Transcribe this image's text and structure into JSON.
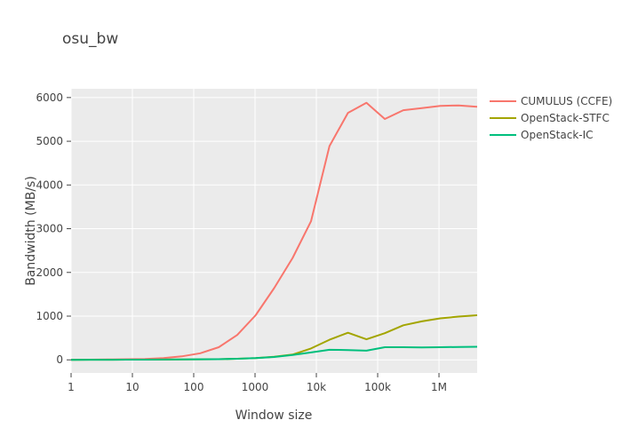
{
  "chart_data": {
    "type": "line",
    "title": "osu_bw",
    "xlabel": "Window size",
    "ylabel": "Bandwidth (MB/s)",
    "xscale": "log",
    "xlim": [
      1,
      4194304
    ],
    "ylim": [
      -300,
      6200
    ],
    "x_ticks": [
      1,
      10,
      100,
      1000,
      10000,
      100000,
      1000000
    ],
    "x_tick_labels": [
      "1",
      "10",
      "100",
      "1000",
      "10k",
      "100k",
      "1M"
    ],
    "y_ticks": [
      0,
      1000,
      2000,
      3000,
      4000,
      5000,
      6000
    ],
    "y_tick_labels": [
      "0",
      "1000",
      "2000",
      "3000",
      "4000",
      "5000",
      "6000"
    ],
    "grid": true,
    "legend_position": "top-right",
    "x": [
      1,
      2,
      4,
      8,
      16,
      32,
      64,
      128,
      256,
      512,
      1024,
      2048,
      4096,
      8192,
      16384,
      32768,
      65536,
      131072,
      262144,
      524288,
      1048576,
      2097152,
      4194304
    ],
    "series": [
      {
        "name": "CUMULUS (CCFE)",
        "color": "#F8766D",
        "values": [
          2,
          4,
          8,
          15,
          20,
          40,
          80,
          150,
          290,
          570,
          1020,
          1640,
          2330,
          3170,
          4890,
          5650,
          5880,
          5510,
          5710,
          5760,
          5810,
          5820,
          5790
        ]
      },
      {
        "name": "OpenStack-STFC",
        "color": "#A3A500",
        "values": [
          1,
          2,
          3,
          4,
          5,
          7,
          9,
          12,
          15,
          25,
          40,
          70,
          120,
          260,
          460,
          620,
          470,
          610,
          790,
          880,
          950,
          990,
          1020
        ]
      },
      {
        "name": "OpenStack-IC",
        "color": "#00BF7D",
        "values": [
          1,
          2,
          3,
          4,
          5,
          7,
          9,
          12,
          15,
          25,
          40,
          65,
          110,
          170,
          230,
          225,
          210,
          290,
          290,
          285,
          290,
          295,
          300
        ]
      }
    ]
  }
}
